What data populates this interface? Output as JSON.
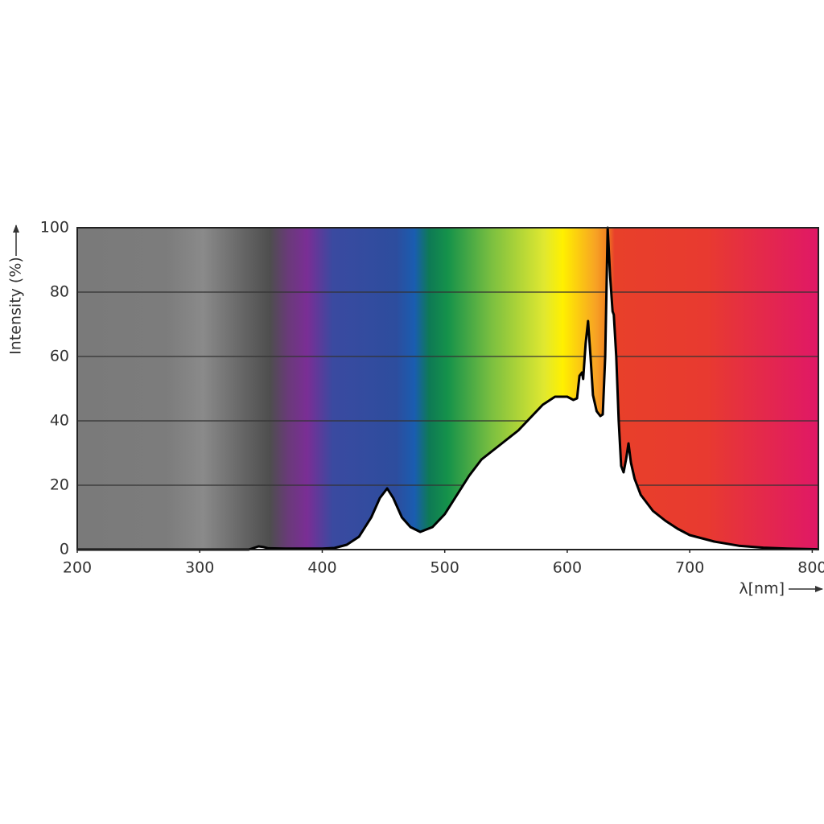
{
  "chart_data": {
    "type": "area",
    "y_label": "Intensity (%)",
    "x_label": "λ[nm]",
    "x": [
      200,
      340,
      348,
      352,
      356,
      370,
      400,
      410,
      420,
      430,
      440,
      447,
      453,
      458,
      465,
      472,
      480,
      490,
      500,
      510,
      520,
      530,
      540,
      550,
      560,
      570,
      580,
      590,
      600,
      605,
      608,
      610,
      612,
      613,
      615,
      617,
      619,
      621,
      624,
      627,
      629,
      631,
      633,
      635,
      637,
      638,
      640,
      642,
      644,
      646,
      648,
      650,
      652,
      655,
      660,
      670,
      680,
      690,
      700,
      720,
      740,
      760,
      780,
      805
    ],
    "values": [
      0,
      0,
      1,
      0.8,
      0.4,
      0.3,
      0.3,
      0.5,
      1.5,
      4,
      10,
      16,
      19,
      16,
      10,
      7,
      5.5,
      7,
      11,
      17,
      23,
      28,
      31,
      34,
      37,
      41,
      45,
      47.5,
      47.5,
      46.5,
      47,
      54,
      55,
      53,
      64,
      71,
      60,
      48,
      43,
      41.5,
      42,
      60,
      100,
      85,
      74,
      73,
      60,
      40,
      26,
      24,
      28,
      33,
      27,
      22,
      17,
      12,
      9,
      6.5,
      4.5,
      2.5,
      1.2,
      0.6,
      0.3,
      0.1
    ],
    "color": "#ffffff",
    "line_color": "#000000",
    "xlim": [
      200,
      805
    ],
    "ylim": [
      0,
      100
    ],
    "xticks": [
      200,
      300,
      400,
      500,
      600,
      700,
      800
    ],
    "yticks": [
      0,
      20,
      40,
      60,
      80,
      100
    ],
    "grid": true
  }
}
